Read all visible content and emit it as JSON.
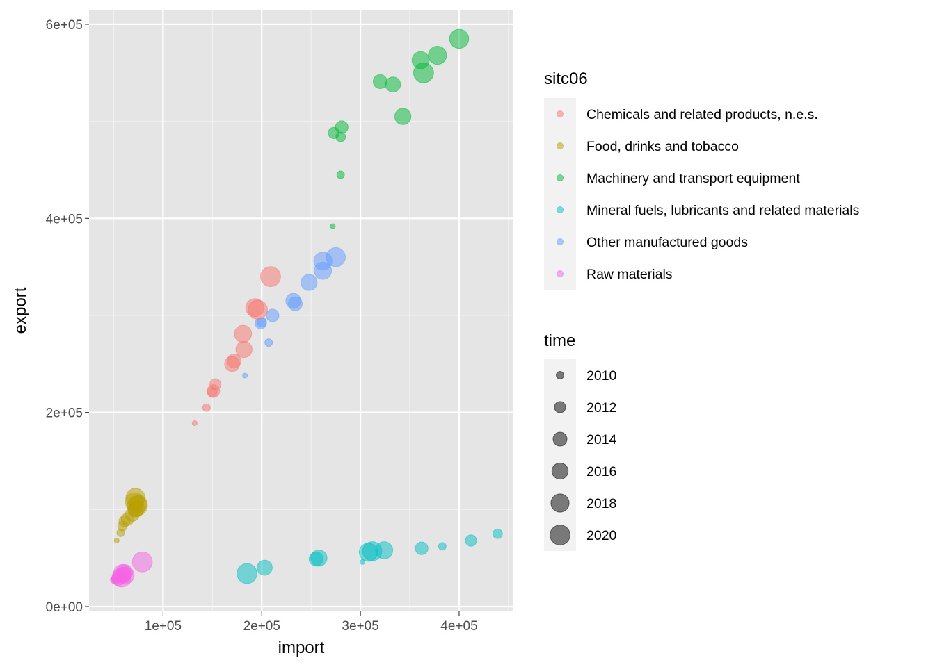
{
  "chart_data": {
    "type": "scatter",
    "xlabel": "import",
    "ylabel": "export",
    "xlim": [
      25000,
      455000
    ],
    "ylim": [
      -5000,
      615000
    ],
    "x_ticks": [
      100000,
      200000,
      300000,
      400000
    ],
    "x_tick_labels": [
      "1e+05",
      "2e+05",
      "3e+05",
      "4e+05"
    ],
    "y_ticks": [
      0,
      200000,
      400000,
      600000
    ],
    "y_tick_labels": [
      "0e+00",
      "2e+05",
      "4e+05",
      "6e+05"
    ],
    "grid": true,
    "panel_background": "#e5e5e5",
    "point_alpha": 0.5,
    "legend_placement": "right",
    "color_legend": {
      "title": "sitc06",
      "entries": [
        {
          "label": "Chemicals and related products, n.e.s.",
          "color": "#F8766D"
        },
        {
          "label": "Food, drinks and tobacco",
          "color": "#B79F00"
        },
        {
          "label": "Machinery and transport equipment",
          "color": "#00BA38"
        },
        {
          "label": "Mineral fuels, lubricants and related materials",
          "color": "#00BFC4"
        },
        {
          "label": "Other manufactured goods",
          "color": "#619CFF"
        },
        {
          "label": "Raw materials",
          "color": "#F564E3"
        }
      ]
    },
    "size_legend": {
      "title": "time",
      "range": [
        2009,
        2021
      ],
      "entries": [
        2010,
        2012,
        2014,
        2016,
        2018,
        2020
      ]
    },
    "series": [
      {
        "name": "Chemicals and related products, n.e.s.",
        "color": "#F8766D",
        "points": [
          {
            "x": 132000,
            "y": 189000,
            "time": 2009
          },
          {
            "x": 144000,
            "y": 205000,
            "time": 2010
          },
          {
            "x": 150000,
            "y": 221000,
            "time": 2011
          },
          {
            "x": 153000,
            "y": 229000,
            "time": 2012
          },
          {
            "x": 151000,
            "y": 222000,
            "time": 2013
          },
          {
            "x": 172000,
            "y": 253000,
            "time": 2014
          },
          {
            "x": 170000,
            "y": 250000,
            "time": 2015
          },
          {
            "x": 182000,
            "y": 265000,
            "time": 2016
          },
          {
            "x": 181000,
            "y": 281000,
            "time": 2017
          },
          {
            "x": 193000,
            "y": 308000,
            "time": 2018
          },
          {
            "x": 196000,
            "y": 306000,
            "time": 2019
          },
          {
            "x": 209000,
            "y": 340000,
            "time": 2020
          }
        ]
      },
      {
        "name": "Food, drinks and tobacco",
        "color": "#B79F00",
        "points": [
          {
            "x": 53000,
            "y": 68000,
            "time": 2009
          },
          {
            "x": 57000,
            "y": 76000,
            "time": 2010
          },
          {
            "x": 59000,
            "y": 83000,
            "time": 2011
          },
          {
            "x": 61000,
            "y": 88000,
            "time": 2012
          },
          {
            "x": 64000,
            "y": 90000,
            "time": 2013
          },
          {
            "x": 69000,
            "y": 95000,
            "time": 2014
          },
          {
            "x": 72000,
            "y": 100000,
            "time": 2015
          },
          {
            "x": 73000,
            "y": 101000,
            "time": 2016
          },
          {
            "x": 75000,
            "y": 106000,
            "time": 2017
          },
          {
            "x": 71000,
            "y": 108000,
            "time": 2018
          },
          {
            "x": 72000,
            "y": 112000,
            "time": 2019
          },
          {
            "x": 74000,
            "y": 104000,
            "time": 2020
          }
        ]
      },
      {
        "name": "Machinery and transport equipment",
        "color": "#00BA38",
        "points": [
          {
            "x": 272000,
            "y": 392000,
            "time": 2009
          },
          {
            "x": 280000,
            "y": 445000,
            "time": 2010
          },
          {
            "x": 280000,
            "y": 484000,
            "time": 2011
          },
          {
            "x": 273000,
            "y": 488000,
            "time": 2012
          },
          {
            "x": 281000,
            "y": 494000,
            "time": 2013
          },
          {
            "x": 320000,
            "y": 541000,
            "time": 2014
          },
          {
            "x": 333000,
            "y": 538000,
            "time": 2015
          },
          {
            "x": 343000,
            "y": 505000,
            "time": 2016
          },
          {
            "x": 361000,
            "y": 563000,
            "time": 2017
          },
          {
            "x": 378000,
            "y": 568000,
            "time": 2018
          },
          {
            "x": 400000,
            "y": 585000,
            "time": 2019
          },
          {
            "x": 364000,
            "y": 550000,
            "time": 2020
          }
        ]
      },
      {
        "name": "Mineral fuels, lubricants and related materials",
        "color": "#00BFC4",
        "points": [
          {
            "x": 302000,
            "y": 46000,
            "time": 2009
          },
          {
            "x": 383000,
            "y": 62000,
            "time": 2010
          },
          {
            "x": 439000,
            "y": 75000,
            "time": 2011
          },
          {
            "x": 412000,
            "y": 68000,
            "time": 2012
          },
          {
            "x": 362000,
            "y": 60000,
            "time": 2013
          },
          {
            "x": 255000,
            "y": 49000,
            "time": 2014
          },
          {
            "x": 203000,
            "y": 40000,
            "time": 2015
          },
          {
            "x": 258000,
            "y": 50000,
            "time": 2016
          },
          {
            "x": 324000,
            "y": 58000,
            "time": 2017
          },
          {
            "x": 308000,
            "y": 56000,
            "time": 2018
          },
          {
            "x": 312000,
            "y": 57000,
            "time": 2019
          },
          {
            "x": 185000,
            "y": 34000,
            "time": 2020
          }
        ]
      },
      {
        "name": "Other manufactured goods",
        "color": "#619CFF",
        "points": [
          {
            "x": 183000,
            "y": 238000,
            "time": 2009
          },
          {
            "x": 207000,
            "y": 272000,
            "time": 2010
          },
          {
            "x": 200000,
            "y": 293000,
            "time": 2011
          },
          {
            "x": 199000,
            "y": 292000,
            "time": 2012
          },
          {
            "x": 211000,
            "y": 300000,
            "time": 2013
          },
          {
            "x": 234000,
            "y": 312000,
            "time": 2014
          },
          {
            "x": 232000,
            "y": 315000,
            "time": 2015
          },
          {
            "x": 248000,
            "y": 334000,
            "time": 2016
          },
          {
            "x": 262000,
            "y": 346000,
            "time": 2017
          },
          {
            "x": 262000,
            "y": 356000,
            "time": 2018
          },
          {
            "x": 275000,
            "y": 360000,
            "time": 2019
          }
        ]
      },
      {
        "name": "Raw materials",
        "color": "#F564E3",
        "points": [
          {
            "x": 49000,
            "y": 28000,
            "time": 2009
          },
          {
            "x": 51000,
            "y": 27000,
            "time": 2010
          },
          {
            "x": 53000,
            "y": 29000,
            "time": 2011
          },
          {
            "x": 56000,
            "y": 30000,
            "time": 2012
          },
          {
            "x": 57000,
            "y": 31000,
            "time": 2013
          },
          {
            "x": 55000,
            "y": 29000,
            "time": 2014
          },
          {
            "x": 60000,
            "y": 33000,
            "time": 2015
          },
          {
            "x": 61000,
            "y": 35000,
            "time": 2016
          },
          {
            "x": 62000,
            "y": 32000,
            "time": 2017
          },
          {
            "x": 59000,
            "y": 34000,
            "time": 2018
          },
          {
            "x": 58000,
            "y": 30000,
            "time": 2019
          },
          {
            "x": 79000,
            "y": 46000,
            "time": 2020
          }
        ]
      }
    ]
  }
}
